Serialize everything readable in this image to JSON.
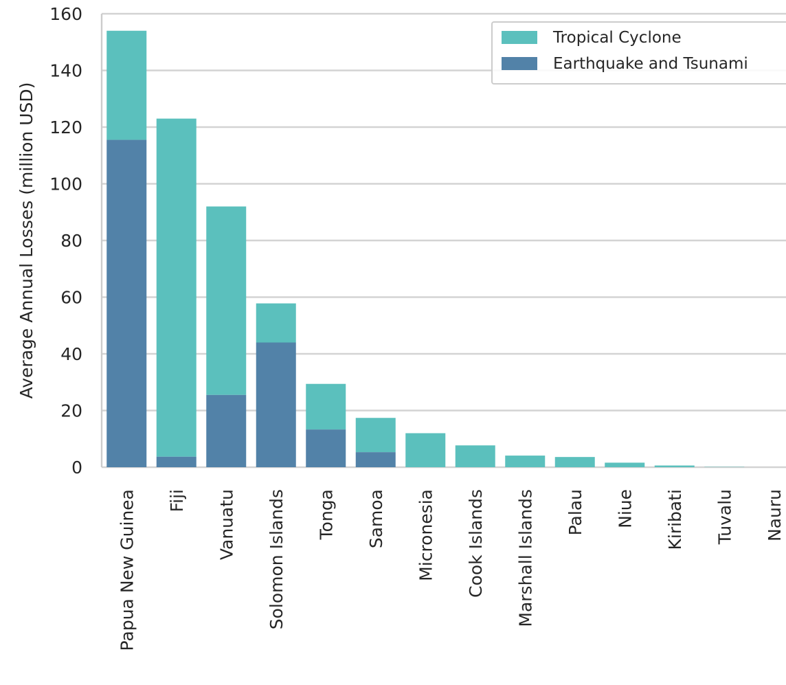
{
  "chart_data": {
    "type": "bar",
    "stacked": true,
    "ylabel": "Average Annual Losses (million USD)",
    "xlabel": "",
    "ylim": [
      0,
      160
    ],
    "yticks": [
      0,
      20,
      40,
      60,
      80,
      100,
      120,
      140,
      160
    ],
    "grid": "horizontal",
    "legend_position": "top-right",
    "categories": [
      "Papua New Guinea",
      "Fiji",
      "Vanuatu",
      "Solomon Islands",
      "Tonga",
      "Samoa",
      "Micronesia",
      "Cook Islands",
      "Marshall Islands",
      "Palau",
      "Niue",
      "Kiribati",
      "Tuvalu",
      "Nauru"
    ],
    "series": [
      {
        "name": "Earthquake and Tsunami",
        "color": "#5282a8",
        "values": [
          115.5,
          3.7,
          25.5,
          44.0,
          13.3,
          5.3,
          0.0,
          0.0,
          0.0,
          0.0,
          0.0,
          0.0,
          0.0,
          0.0
        ]
      },
      {
        "name": "Tropical Cyclone",
        "color": "#5bc0bd",
        "values": [
          38.5,
          119.3,
          66.5,
          13.8,
          16.1,
          12.1,
          12.0,
          7.7,
          4.1,
          3.6,
          1.6,
          0.6,
          0.1,
          0.0
        ]
      }
    ],
    "legend_order": [
      "Tropical Cyclone",
      "Earthquake and Tsunami"
    ]
  }
}
